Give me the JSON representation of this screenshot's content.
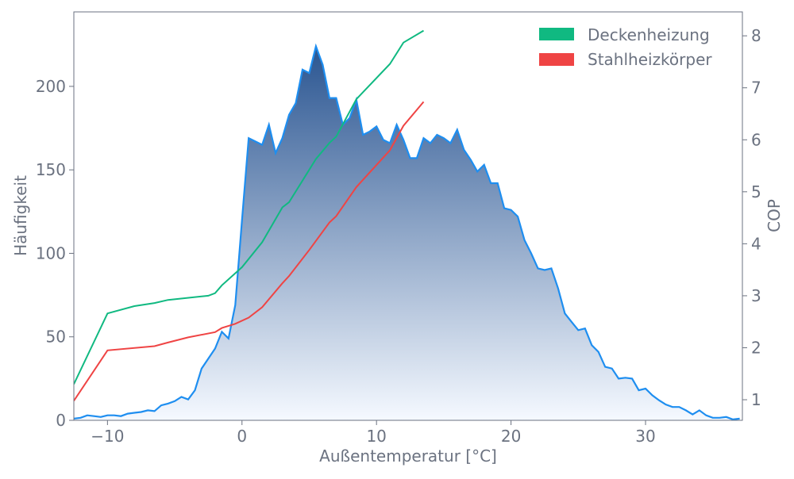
{
  "chart_data": {
    "type": "area",
    "title": "",
    "xlabel": "Außentemperatur [°C]",
    "ylabel": "Häufigkeit",
    "y2label": "COP",
    "xlim": [
      -12.5,
      37.2
    ],
    "ylim": [
      0,
      244.6
    ],
    "y2lim": [
      0.604,
      8.46
    ],
    "xticks": [
      -10,
      0,
      10,
      20,
      30
    ],
    "xtick_labels": [
      "−10",
      "0",
      "10",
      "20",
      "30"
    ],
    "yticks": [
      0,
      50,
      100,
      150,
      200
    ],
    "y2ticks": [
      1,
      2,
      3,
      4,
      5,
      6,
      7,
      8
    ],
    "grid": false,
    "legend_placement": "top-right",
    "colors": {
      "histogram_line": "#1e8ef0",
      "gradient_top": "#2a5591",
      "gradient_bottom": "#f5f9ff",
      "deckenheizung": "#10b981",
      "stahlheizkoerper": "#ef4444",
      "axis": "#6b7280"
    },
    "histogram": {
      "x": [
        -12.5,
        -12,
        -11.5,
        -11,
        -10.5,
        -10,
        -9.5,
        -9,
        -8.5,
        -8,
        -7.5,
        -7,
        -6.5,
        -6,
        -5.5,
        -5,
        -4.5,
        -4,
        -3.5,
        -3,
        -2.5,
        -2,
        -1.5,
        -1,
        -0.5,
        0,
        0.5,
        1,
        1.5,
        2,
        2.5,
        3,
        3.5,
        4,
        4.5,
        5,
        5.5,
        6,
        6.5,
        7,
        7.5,
        8,
        8.5,
        9,
        9.5,
        10,
        10.5,
        11,
        11.5,
        12,
        12.5,
        13,
        13.5,
        14,
        14.5,
        15,
        15.5,
        16,
        16.5,
        17,
        17.5,
        18,
        18.5,
        19,
        19.5,
        20,
        20.5,
        21,
        21.5,
        22,
        22.5,
        23,
        23.5,
        24,
        24.5,
        25,
        25.5,
        26,
        26.5,
        27,
        27.5,
        28,
        28.5,
        29,
        29.5,
        30,
        30.5,
        31,
        31.5,
        32,
        32.5,
        33,
        33.5,
        34,
        34.5,
        35,
        35.5,
        36,
        36.5,
        37
      ],
      "values": [
        1,
        1.5,
        3,
        2.5,
        2,
        3,
        3,
        2.5,
        4,
        4.5,
        5,
        6,
        5.5,
        9,
        10,
        11.5,
        14,
        12.5,
        18,
        31,
        37,
        43,
        53,
        49,
        69,
        120,
        169,
        167,
        165,
        177,
        160,
        169,
        183,
        190,
        210,
        208,
        224,
        213,
        193,
        193,
        177,
        181,
        192,
        171,
        173,
        176,
        168,
        166,
        177,
        168,
        157,
        157,
        169,
        166,
        171,
        169,
        166,
        174,
        162,
        156,
        149,
        153,
        142,
        142,
        127,
        126,
        122,
        108,
        100,
        91,
        90,
        91,
        79,
        64,
        59,
        54,
        55,
        45,
        41,
        32,
        31,
        25,
        25.5,
        25,
        18,
        19,
        15,
        12,
        9.5,
        8,
        8,
        6,
        3.5,
        6,
        3,
        1.5,
        1.5,
        2,
        0.5,
        1
      ]
    },
    "series": [
      {
        "name": "Deckenheizung",
        "axis": "right",
        "x": [
          -12.5,
          -10,
          -8,
          -6.5,
          -5.5,
          -2.5,
          -2,
          -1.5,
          0,
          1.5,
          3,
          3.5,
          5.5,
          6.5,
          7,
          8.5,
          11,
          12,
          13.5
        ],
        "values": [
          1.3,
          2.66,
          2.8,
          2.86,
          2.92,
          3.0,
          3.05,
          3.2,
          3.55,
          4.03,
          4.7,
          4.8,
          5.63,
          5.94,
          6.06,
          6.78,
          7.46,
          7.87,
          8.1
        ]
      },
      {
        "name": "Stahlheizkörper",
        "axis": "right",
        "x": [
          -12.5,
          -10,
          -6.5,
          -5.5,
          -4,
          -2,
          -1.5,
          -0.5,
          0.5,
          1.5,
          3,
          3.5,
          5,
          6.5,
          7,
          8.5,
          11,
          12,
          13.5
        ],
        "values": [
          0.98,
          1.95,
          2.03,
          2.1,
          2.2,
          2.3,
          2.38,
          2.46,
          2.58,
          2.78,
          3.24,
          3.38,
          3.88,
          4.41,
          4.53,
          5.09,
          5.8,
          6.27,
          6.73
        ]
      }
    ]
  }
}
